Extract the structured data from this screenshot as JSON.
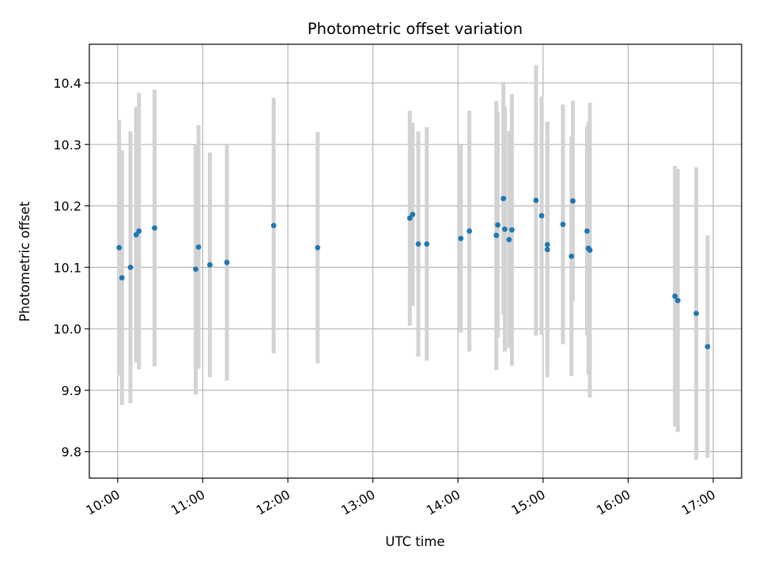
{
  "chart_data": {
    "type": "scatter",
    "title": "Photometric offset variation",
    "xlabel": "UTC time",
    "ylabel": "Photometric offset",
    "x_ticks": [
      "10:00",
      "11:00",
      "12:00",
      "13:00",
      "14:00",
      "15:00",
      "16:00",
      "17:00"
    ],
    "y_ticks": [
      "9.8",
      "9.9",
      "10.0",
      "10.1",
      "10.2",
      "10.3",
      "10.4"
    ],
    "xlim": [
      "09:40",
      "17:20"
    ],
    "ylim": [
      9.757,
      10.463
    ],
    "grid": true,
    "colors": {
      "points": "#1f77b4",
      "errorbars": "#d3d3d3",
      "grid": "#b0b0b0"
    },
    "points": [
      {
        "x": "10:01",
        "y": 10.132,
        "err": 0.208
      },
      {
        "x": "10:03",
        "y": 10.083,
        "err": 0.207
      },
      {
        "x": "10:09",
        "y": 10.1,
        "err": 0.221
      },
      {
        "x": "10:13",
        "y": 10.153,
        "err": 0.208
      },
      {
        "x": "10:15",
        "y": 10.159,
        "err": 0.225
      },
      {
        "x": "10:26",
        "y": 10.164,
        "err": 0.225
      },
      {
        "x": "10:55",
        "y": 10.097,
        "err": 0.204
      },
      {
        "x": "10:57",
        "y": 10.133,
        "err": 0.198
      },
      {
        "x": "11:05",
        "y": 10.104,
        "err": 0.183
      },
      {
        "x": "11:17",
        "y": 10.108,
        "err": 0.192
      },
      {
        "x": "11:50",
        "y": 10.168,
        "err": 0.208
      },
      {
        "x": "12:21",
        "y": 10.132,
        "err": 0.188
      },
      {
        "x": "13:26",
        "y": 10.18,
        "err": 0.175
      },
      {
        "x": "13:28",
        "y": 10.186,
        "err": 0.149
      },
      {
        "x": "13:32",
        "y": 10.138,
        "err": 0.183
      },
      {
        "x": "13:38",
        "y": 10.138,
        "err": 0.19
      },
      {
        "x": "14:02",
        "y": 10.147,
        "err": 0.153
      },
      {
        "x": "14:08",
        "y": 10.159,
        "err": 0.196
      },
      {
        "x": "14:27",
        "y": 10.152,
        "err": 0.219
      },
      {
        "x": "14:28",
        "y": 10.169,
        "err": 0.183
      },
      {
        "x": "14:32",
        "y": 10.212,
        "err": 0.19
      },
      {
        "x": "14:33",
        "y": 10.162,
        "err": 0.199
      },
      {
        "x": "14:36",
        "y": 10.145,
        "err": 0.177
      },
      {
        "x": "14:38",
        "y": 10.161,
        "err": 0.221
      },
      {
        "x": "14:55",
        "y": 10.209,
        "err": 0.22
      },
      {
        "x": "14:59",
        "y": 10.184,
        "err": 0.194
      },
      {
        "x": "15:03",
        "y": 10.137,
        "err": 0.2
      },
      {
        "x": "15:03",
        "y": 10.129,
        "err": 0.208
      },
      {
        "x": "15:14",
        "y": 10.17,
        "err": 0.195
      },
      {
        "x": "15:20",
        "y": 10.118,
        "err": 0.195
      },
      {
        "x": "15:21",
        "y": 10.208,
        "err": 0.163
      },
      {
        "x": "15:31",
        "y": 10.159,
        "err": 0.17
      },
      {
        "x": "15:32",
        "y": 10.131,
        "err": 0.206
      },
      {
        "x": "15:33",
        "y": 10.128,
        "err": 0.24
      },
      {
        "x": "16:33",
        "y": 10.053,
        "err": 0.212
      },
      {
        "x": "16:35",
        "y": 10.046,
        "err": 0.214
      },
      {
        "x": "16:48",
        "y": 10.025,
        "err": 0.238
      },
      {
        "x": "16:56",
        "y": 9.971,
        "err": 0.181
      }
    ]
  }
}
